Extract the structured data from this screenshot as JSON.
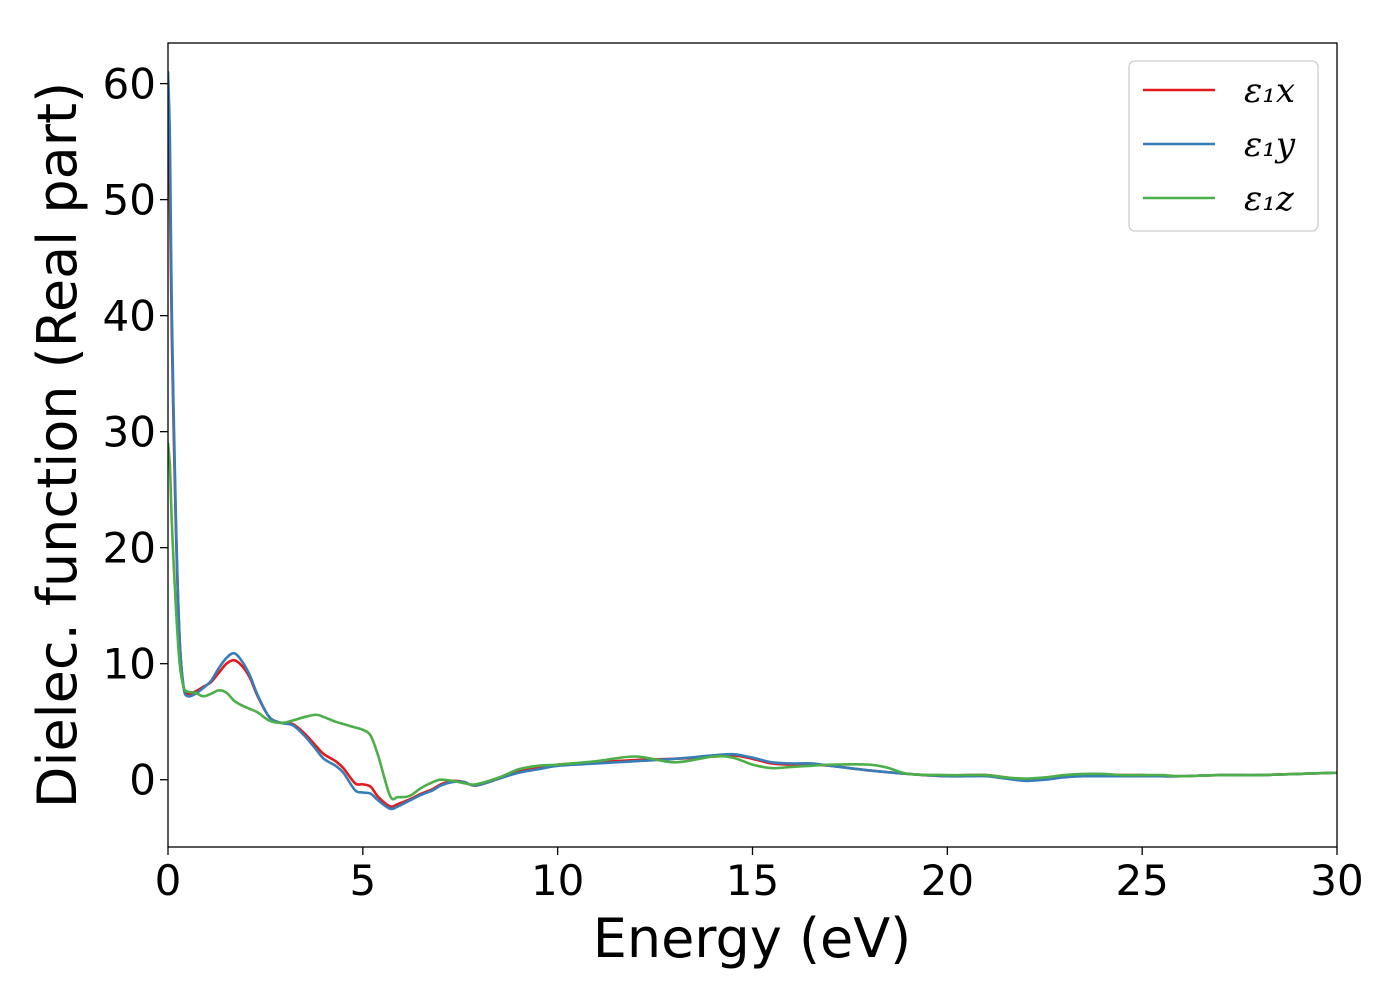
{
  "chart_data": {
    "type": "line",
    "title": "",
    "xlabel": "Energy (eV)",
    "ylabel": "Dielec. function (Real part)",
    "xlim": [
      0,
      30
    ],
    "ylim": [
      -5.8,
      63.5
    ],
    "xticks": [
      0,
      5,
      10,
      15,
      20,
      25,
      30
    ],
    "yticks": [
      0,
      10,
      20,
      30,
      40,
      50,
      60
    ],
    "grid": false,
    "legend_position": "top-right",
    "series": [
      {
        "name": "ε₁x",
        "color": "#e41a1c",
        "x": [
          0,
          0.05,
          0.1,
          0.2,
          0.3,
          0.4,
          0.5,
          0.7,
          0.9,
          1.1,
          1.3,
          1.5,
          1.7,
          1.9,
          2.1,
          2.3,
          2.6,
          2.9,
          3.2,
          3.5,
          3.8,
          4.0,
          4.3,
          4.5,
          4.8,
          5.0,
          5.2,
          5.4,
          5.7,
          5.9,
          6.2,
          6.5,
          6.8,
          7.0,
          7.3,
          7.6,
          7.9,
          8.5,
          9.0,
          9.5,
          10,
          11,
          12,
          13,
          14,
          14.5,
          15,
          15.5,
          16,
          16.5,
          17,
          18,
          19,
          20,
          20.5,
          21,
          21.5,
          22,
          22.5,
          23,
          23.5,
          24,
          24.5,
          25,
          25.5,
          26,
          27,
          28,
          29,
          30
        ],
        "y": [
          56,
          50,
          38,
          22,
          12,
          8,
          7.4,
          7.6,
          8.0,
          8.4,
          9.2,
          10.0,
          10.3,
          9.8,
          8.8,
          7.2,
          5.4,
          4.9,
          4.8,
          4.0,
          2.9,
          2.2,
          1.6,
          1.0,
          -0.3,
          -0.4,
          -0.6,
          -1.5,
          -2.3,
          -2.1,
          -1.7,
          -1.2,
          -0.8,
          -0.4,
          -0.1,
          -0.2,
          -0.5,
          0.1,
          0.7,
          1.0,
          1.3,
          1.5,
          1.7,
          1.8,
          2.0,
          2.1,
          1.8,
          1.4,
          1.3,
          1.3,
          1.2,
          0.8,
          0.5,
          0.3,
          0.4,
          0.4,
          0.2,
          0.0,
          0.1,
          0.3,
          0.4,
          0.4,
          0.4,
          0.4,
          0.3,
          0.3,
          0.4,
          0.4,
          0.5,
          0.6
        ]
      },
      {
        "name": "ε₁y",
        "color": "#377eb8",
        "x": [
          0,
          0.05,
          0.1,
          0.2,
          0.3,
          0.4,
          0.5,
          0.7,
          0.9,
          1.1,
          1.3,
          1.5,
          1.7,
          1.9,
          2.1,
          2.3,
          2.6,
          2.9,
          3.2,
          3.5,
          3.8,
          4.0,
          4.3,
          4.5,
          4.8,
          5.0,
          5.2,
          5.4,
          5.7,
          5.9,
          6.2,
          6.5,
          6.8,
          7.0,
          7.3,
          7.6,
          7.9,
          8.5,
          9.0,
          9.5,
          10,
          11,
          12,
          13,
          14,
          14.5,
          15,
          15.5,
          16,
          16.5,
          17,
          18,
          19,
          20,
          20.5,
          21,
          21.5,
          22,
          22.5,
          23,
          23.5,
          24,
          24.5,
          25,
          25.5,
          26,
          27,
          28,
          29,
          30
        ],
        "y": [
          61,
          55,
          40,
          23,
          12,
          8,
          7.2,
          7.4,
          7.9,
          8.5,
          9.6,
          10.5,
          10.9,
          10.2,
          9.0,
          7.3,
          5.4,
          4.9,
          4.7,
          3.8,
          2.6,
          1.8,
          1.2,
          0.6,
          -0.9,
          -1.1,
          -1.2,
          -1.8,
          -2.5,
          -2.3,
          -1.8,
          -1.3,
          -0.9,
          -0.5,
          -0.2,
          -0.2,
          -0.5,
          0.1,
          0.6,
          0.9,
          1.2,
          1.4,
          1.6,
          1.8,
          2.1,
          2.2,
          1.9,
          1.5,
          1.4,
          1.4,
          1.2,
          0.8,
          0.5,
          0.3,
          0.3,
          0.3,
          0.1,
          -0.1,
          0.0,
          0.2,
          0.3,
          0.3,
          0.3,
          0.3,
          0.3,
          0.3,
          0.4,
          0.4,
          0.5,
          0.6
        ]
      },
      {
        "name": "ε₁z",
        "color": "#4daf4a",
        "x": [
          0,
          0.05,
          0.1,
          0.2,
          0.3,
          0.4,
          0.5,
          0.7,
          0.9,
          1.1,
          1.3,
          1.5,
          1.7,
          1.9,
          2.1,
          2.3,
          2.6,
          2.9,
          3.2,
          3.5,
          3.8,
          4.0,
          4.3,
          4.5,
          4.8,
          5.0,
          5.2,
          5.4,
          5.7,
          5.9,
          6.2,
          6.5,
          6.8,
          7.0,
          7.3,
          7.6,
          7.9,
          8.5,
          9.0,
          9.5,
          10,
          11,
          12,
          13,
          14,
          14.5,
          15,
          15.5,
          16,
          16.5,
          17,
          18,
          18.5,
          19,
          20,
          20.5,
          21,
          21.5,
          22,
          22.5,
          23,
          23.5,
          24,
          24.5,
          25,
          25.5,
          26,
          27,
          28,
          29,
          30
        ],
        "y": [
          29,
          27,
          22,
          15,
          10,
          8,
          7.6,
          7.5,
          7.2,
          7.4,
          7.7,
          7.5,
          6.8,
          6.4,
          6.1,
          5.8,
          5.1,
          4.9,
          5.1,
          5.4,
          5.6,
          5.4,
          5.0,
          4.8,
          4.5,
          4.3,
          3.8,
          2.0,
          -1.4,
          -1.5,
          -1.4,
          -0.7,
          -0.2,
          0.0,
          -0.1,
          -0.3,
          -0.4,
          0.2,
          0.9,
          1.2,
          1.3,
          1.6,
          2.0,
          1.5,
          2.0,
          1.9,
          1.3,
          1.0,
          1.1,
          1.2,
          1.3,
          1.3,
          1.0,
          0.5,
          0.4,
          0.4,
          0.4,
          0.2,
          0.1,
          0.2,
          0.4,
          0.5,
          0.5,
          0.4,
          0.4,
          0.4,
          0.3,
          0.4,
          0.4,
          0.5,
          0.6
        ]
      }
    ]
  }
}
